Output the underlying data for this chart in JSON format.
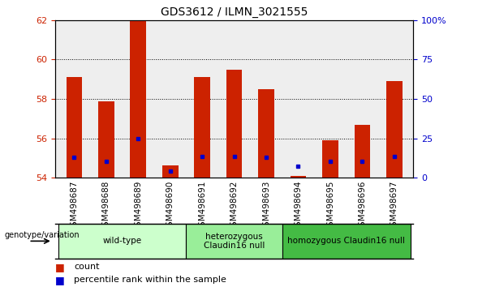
{
  "title": "GDS3612 / ILMN_3021555",
  "samples": [
    "GSM498687",
    "GSM498688",
    "GSM498689",
    "GSM498690",
    "GSM498691",
    "GSM498692",
    "GSM498693",
    "GSM498694",
    "GSM498695",
    "GSM498696",
    "GSM498697"
  ],
  "red_bar_tops": [
    59.1,
    57.9,
    62.0,
    54.65,
    59.1,
    59.5,
    58.5,
    54.1,
    55.9,
    56.7,
    58.9
  ],
  "blue_marker_y": [
    55.05,
    54.85,
    56.0,
    54.35,
    55.1,
    55.1,
    55.05,
    54.6,
    54.85,
    54.85,
    55.1
  ],
  "bar_base": 54.0,
  "ylim_left": [
    54.0,
    62.0
  ],
  "ylim_right": [
    0,
    100
  ],
  "yticks_left": [
    54,
    56,
    58,
    60,
    62
  ],
  "yticks_right": [
    0,
    25,
    50,
    75,
    100
  ],
  "ytick_labels_right": [
    "0",
    "25",
    "50",
    "75",
    "100%"
  ],
  "groups": [
    {
      "label": "wild-type",
      "start": 0,
      "end": 3,
      "color": "#ccffcc"
    },
    {
      "label": "heterozygous\nClaudin16 null",
      "start": 4,
      "end": 6,
      "color": "#99ee99"
    },
    {
      "label": "homozygous Claudin16 null",
      "start": 7,
      "end": 10,
      "color": "#44bb44"
    }
  ],
  "red_color": "#cc2200",
  "blue_color": "#0000cc",
  "bar_width": 0.5,
  "bg_color": "#ffffff",
  "plot_bg": "#eeeeee",
  "tick_label_color_left": "#cc2200",
  "tick_label_color_right": "#0000cc",
  "genotype_label": "genotype/variation",
  "legend_count": "count",
  "legend_percentile": "percentile rank within the sample"
}
